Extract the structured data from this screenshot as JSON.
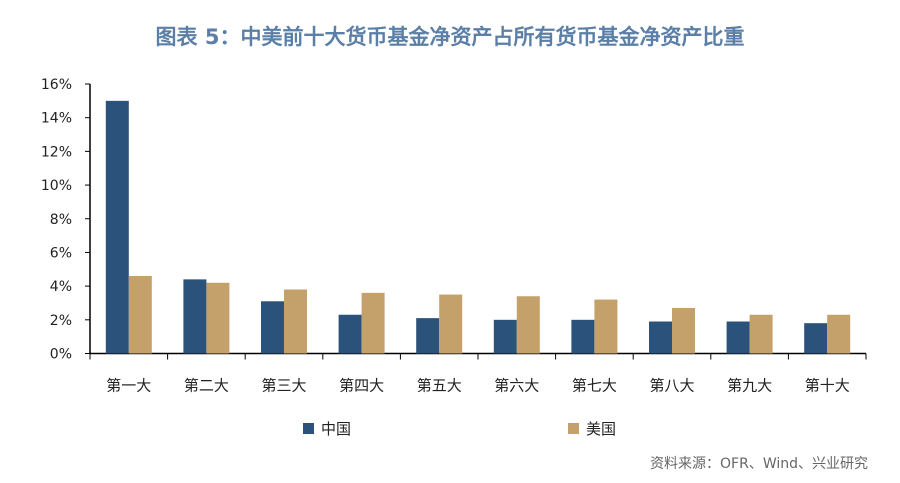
{
  "chart_data": {
    "type": "bar",
    "title": "图表 5：中美前十大货币基金净资产占所有货币基金净资产比重",
    "categories": [
      "第一大",
      "第二大",
      "第三大",
      "第四大",
      "第五大",
      "第六大",
      "第七大",
      "第八大",
      "第九大",
      "第十大"
    ],
    "series": [
      {
        "name": "中国",
        "color": "#2b527a",
        "values": [
          15.0,
          4.4,
          3.1,
          2.3,
          2.1,
          2.0,
          2.0,
          1.9,
          1.9,
          1.8
        ]
      },
      {
        "name": "美国",
        "color": "#c4a06a",
        "values": [
          4.6,
          4.2,
          3.8,
          3.6,
          3.5,
          3.4,
          3.2,
          2.7,
          2.3,
          2.3
        ]
      }
    ],
    "ylim": [
      0,
      16
    ],
    "yticks": [
      0,
      2,
      4,
      6,
      8,
      10,
      12,
      14,
      16
    ],
    "ytick_labels": [
      "0%",
      "2%",
      "4%",
      "6%",
      "8%",
      "10%",
      "12%",
      "14%",
      "16%"
    ],
    "xlabel": "",
    "ylabel": "",
    "legend_position": "bottom",
    "source": "资料来源：OFR、Wind、兴业研究"
  }
}
